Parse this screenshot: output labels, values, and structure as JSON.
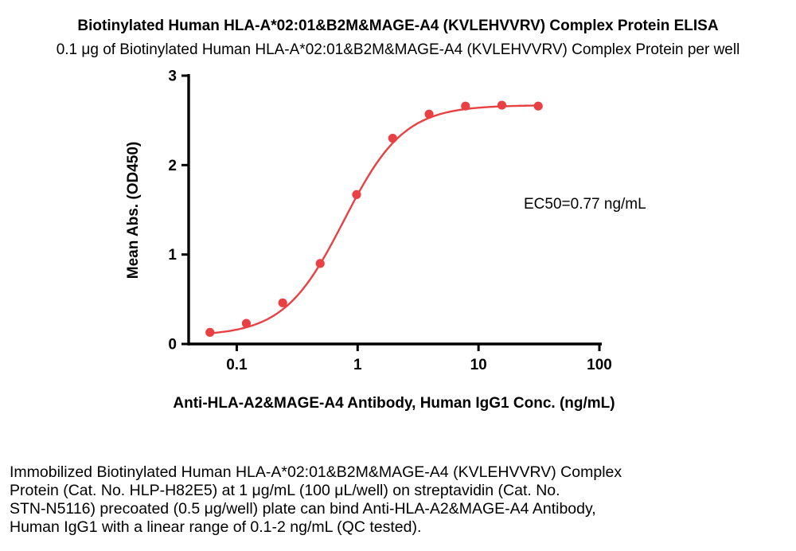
{
  "title": "Biotinylated Human HLA-A*02:01&B2M&MAGE-A4 (KVLEHVVRV) Complex Protein ELISA",
  "subtitle": "0.1 μg of Biotinylated Human HLA-A*02:01&B2M&MAGE-A4 (KVLEHVVRV) Complex Protein per well",
  "annotation": "EC50=0.77 ng/mL",
  "footer": {
    "lines": [
      "Immobilized Biotinylated Human HLA-A*02:01&B2M&MAGE-A4 (KVLEHVVRV) Complex",
      "Protein (Cat. No. HLP-H82E5) at 1 μg/mL (100 μL/well) on streptavidin (Cat. No.",
      "STN-N5116) precoated (0.5 μg/well) plate can bind Anti-HLA-A2&MAGE-A4 Antibody,",
      "Human IgG1 with a linear range of 0.1-2 ng/mL (QC tested)."
    ]
  },
  "chart_data": {
    "type": "scatter",
    "x": [
      0.06,
      0.12,
      0.24,
      0.49,
      0.98,
      1.95,
      3.9,
      7.8,
      15.6,
      31.2
    ],
    "y": [
      0.13,
      0.23,
      0.46,
      0.9,
      1.67,
      2.3,
      2.57,
      2.66,
      2.67,
      2.66
    ],
    "xlabel": "Anti-HLA-A2&MAGE-A4 Antibody, Human IgG1 Conc. (ng/mL)",
    "ylabel": "Mean Abs. (OD450)",
    "x_scale": "log",
    "xlim": [
      0.04,
      100
    ],
    "ylim": [
      0,
      3
    ],
    "x_ticks": [
      0.1,
      1,
      10,
      100
    ],
    "x_tick_labels": [
      "0.1",
      "1",
      "10",
      "100"
    ],
    "y_ticks": [
      0,
      1,
      2,
      3
    ],
    "y_tick_labels": [
      "0",
      "1",
      "2",
      "3"
    ],
    "grid": false,
    "legend": "none",
    "marker_color": "#e94043",
    "curve_color": "#e94043",
    "axis_color": "#000000",
    "fit_4pl": {
      "bottom": 0.09,
      "top": 2.67,
      "ec50": 0.77,
      "hill": 1.75
    },
    "annotation": "EC50=0.77 ng/mL"
  }
}
